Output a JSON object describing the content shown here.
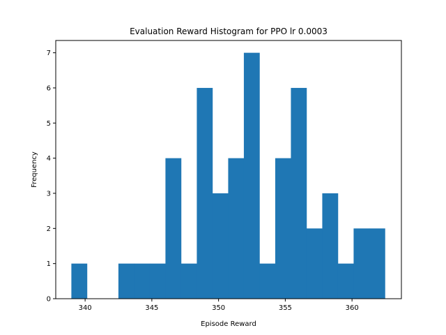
{
  "chart_data": {
    "type": "bar",
    "title": "Evaluation Reward Histogram for PPO lr 0.0003",
    "xlabel": "Episode Reward",
    "ylabel": "Frequency",
    "bin_start": 338.97,
    "bin_width": 1.175,
    "counts": [
      1,
      0,
      0,
      1,
      1,
      1,
      4,
      1,
      6,
      3,
      4,
      7,
      1,
      4,
      6,
      2,
      3,
      1,
      2,
      2
    ],
    "xlim": [
      337.8,
      363.7
    ],
    "ylim": [
      0,
      7.35
    ],
    "xticks": [
      340,
      345,
      350,
      355,
      360
    ],
    "yticks": [
      0,
      1,
      2,
      3,
      4,
      5,
      6,
      7
    ],
    "bar_color": "#1f77b4",
    "grid": false,
    "legend": false
  }
}
